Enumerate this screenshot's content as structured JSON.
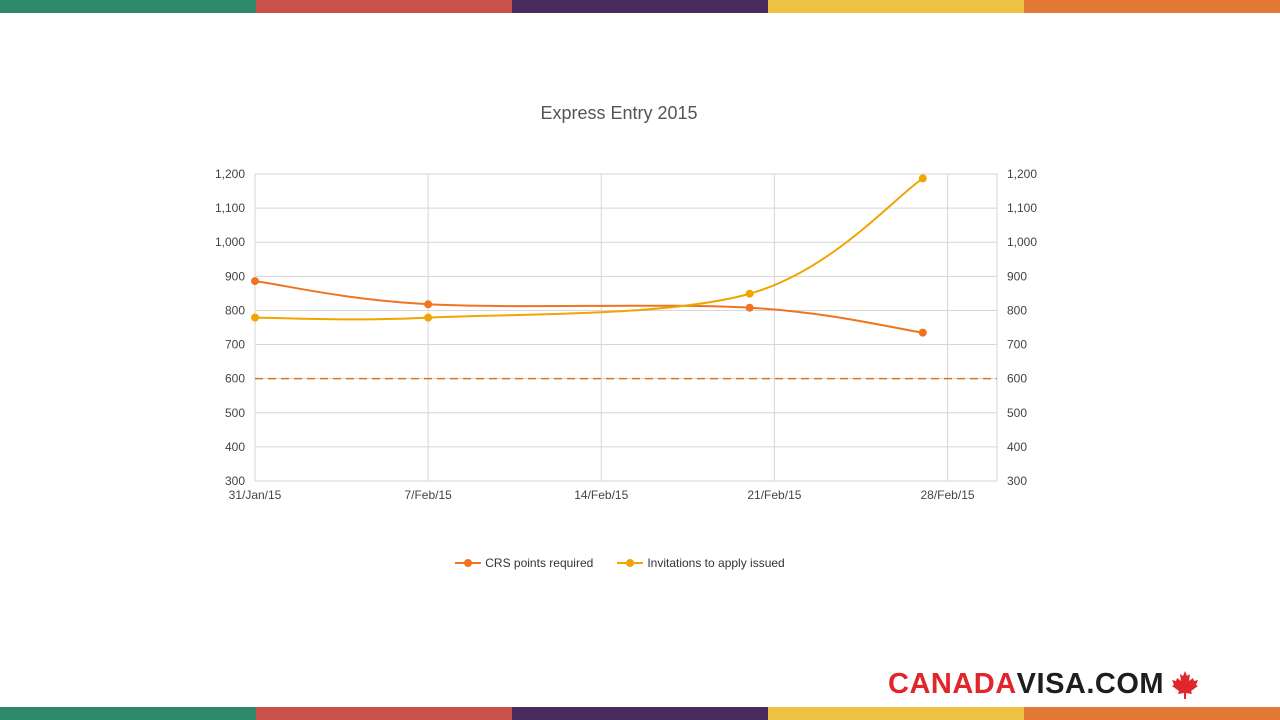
{
  "colors": {
    "stripes": [
      "#2f8a6c",
      "#c8514b",
      "#4a2c5c",
      "#f0c243",
      "#e07a35"
    ],
    "crs": "#ef7421",
    "invitations": "#f0a500",
    "threshold": "#d9741f",
    "grid": "#d6d6d6"
  },
  "chart_data": {
    "type": "line",
    "title": "Express Entry 2015",
    "x_ticks": [
      "31/Jan/15",
      "7/Feb/15",
      "14/Feb/15",
      "21/Feb/15",
      "28/Feb/15"
    ],
    "x_tick_dates": [
      "2015-01-31",
      "2015-02-07",
      "2015-02-14",
      "2015-02-21",
      "2015-02-28"
    ],
    "xlim": [
      "2015-01-31",
      "2015-03-02"
    ],
    "ylim": [
      300,
      1200
    ],
    "y_ticks": [
      "300",
      "400",
      "500",
      "600",
      "700",
      "800",
      "900",
      "1,000",
      "1,100",
      "1,200"
    ],
    "y_tick_values": [
      300,
      400,
      500,
      600,
      700,
      800,
      900,
      1000,
      1100,
      1200
    ],
    "right_axis": true,
    "grid": true,
    "smooth": true,
    "legend_position": "bottom",
    "reference_line": {
      "y": 600,
      "style": "dashed"
    },
    "series": [
      {
        "name": "CRS points required",
        "x": [
          "2015-01-31",
          "2015-02-07",
          "2015-02-20",
          "2015-02-27"
        ],
        "values": [
          886,
          818,
          808,
          735
        ]
      },
      {
        "name": "Invitations to apply issued",
        "x": [
          "2015-01-31",
          "2015-02-07",
          "2015-02-20",
          "2015-02-27"
        ],
        "values": [
          779,
          779,
          849,
          1187
        ]
      }
    ]
  },
  "logo": {
    "part1": "CANADA",
    "part2": "VISA.COM",
    "icon": "maple-leaf-icon"
  }
}
